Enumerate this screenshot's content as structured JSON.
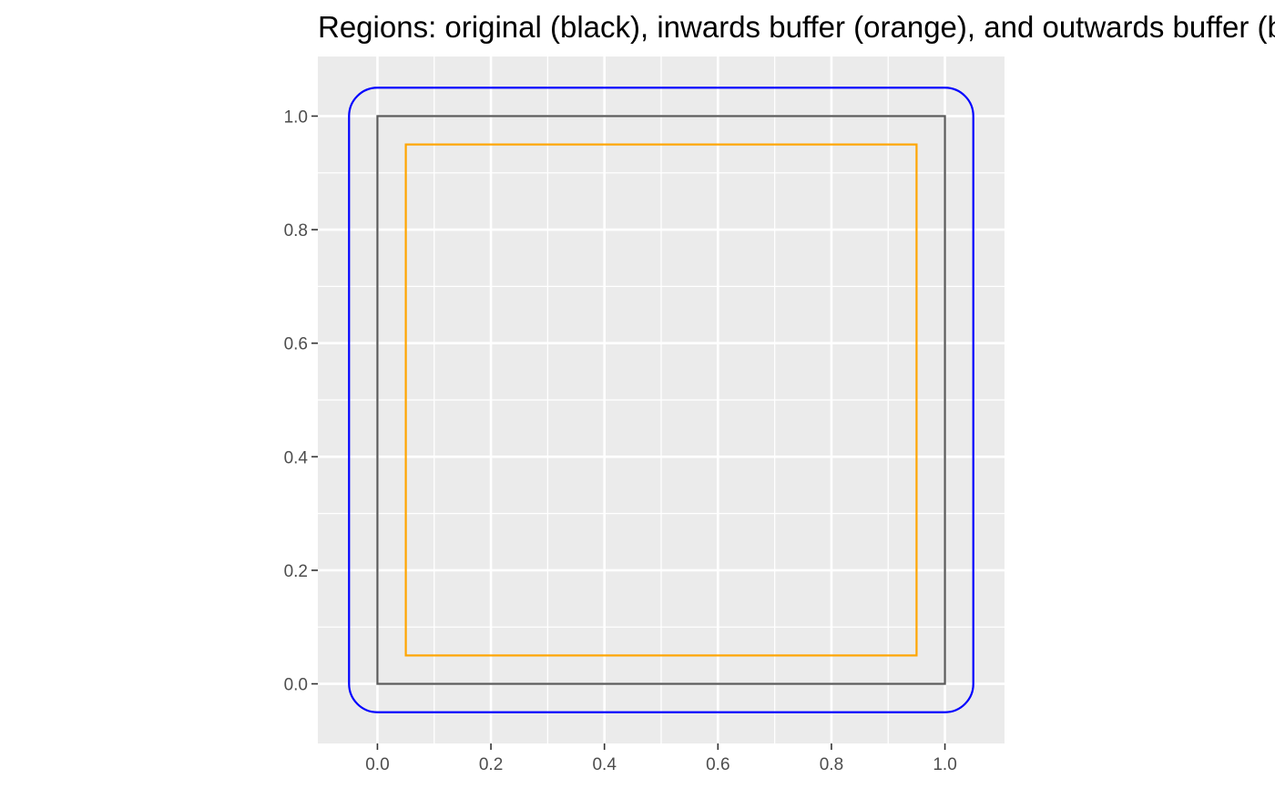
{
  "chart_data": {
    "type": "line",
    "title": "Regions: original (black), inwards buffer (orange), and outwards buffer (blue)",
    "xlabel": "",
    "ylabel": "",
    "xlim": [
      -0.105,
      1.105
    ],
    "ylim": [
      -0.105,
      1.105
    ],
    "x_ticks": [
      0.0,
      0.2,
      0.4,
      0.6,
      0.8,
      1.0
    ],
    "x_tick_labels": [
      "0.0",
      "0.2",
      "0.4",
      "0.6",
      "0.8",
      "1.0"
    ],
    "y_ticks": [
      0.0,
      0.2,
      0.4,
      0.6,
      0.8,
      1.0
    ],
    "y_tick_labels": [
      "0.0",
      "0.2",
      "0.4",
      "0.6",
      "0.8",
      "1.0"
    ],
    "grid": true,
    "legend": "none",
    "panel_background": "#EBEBEB",
    "grid_color": "#FFFFFF",
    "tick_color": "#333333",
    "series": [
      {
        "key": "original",
        "color": "#595959",
        "shape": "square",
        "bounds": {
          "xmin": 0.0,
          "xmax": 1.0,
          "ymin": 0.0,
          "ymax": 1.0
        },
        "corner_radius": 0
      },
      {
        "key": "inwards",
        "color": "#FFA500",
        "shape": "square",
        "bounds": {
          "xmin": 0.05,
          "xmax": 0.95,
          "ymin": 0.05,
          "ymax": 0.95
        },
        "corner_radius": 0
      },
      {
        "key": "outwards",
        "color": "#0000FF",
        "shape": "rounded-square",
        "bounds": {
          "xmin": -0.05,
          "xmax": 1.05,
          "ymin": -0.05,
          "ymax": 1.05
        },
        "corner_radius": 0.05
      }
    ]
  }
}
